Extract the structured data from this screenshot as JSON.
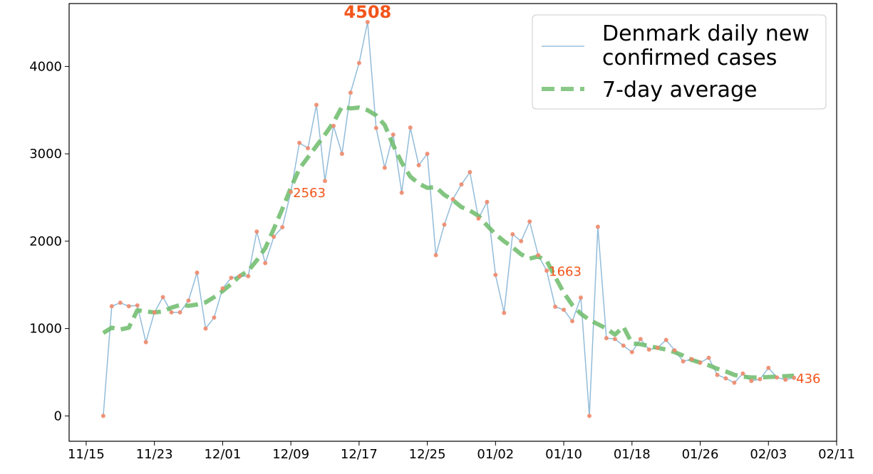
{
  "chart_data": {
    "type": "line",
    "title": "",
    "xlabel": "",
    "ylabel": "",
    "ylim": [
      -290,
      4720
    ],
    "xlim": [
      "2020-11-13",
      "2021-02-11"
    ],
    "grid": false,
    "legend_position": "top-right",
    "x_ticks": [
      {
        "date": "2020-11-15",
        "label": "11/15"
      },
      {
        "date": "2020-11-23",
        "label": "11/23"
      },
      {
        "date": "2020-12-01",
        "label": "12/01"
      },
      {
        "date": "2020-12-09",
        "label": "12/09"
      },
      {
        "date": "2020-12-17",
        "label": "12/17"
      },
      {
        "date": "2020-12-25",
        "label": "12/25"
      },
      {
        "date": "2021-01-02",
        "label": "01/02"
      },
      {
        "date": "2021-01-10",
        "label": "01/10"
      },
      {
        "date": "2021-01-18",
        "label": "01/18"
      },
      {
        "date": "2021-01-26",
        "label": "01/26"
      },
      {
        "date": "2021-02-03",
        "label": "02/03"
      },
      {
        "date": "2021-02-11",
        "label": "02/11"
      }
    ],
    "y_ticks": [
      {
        "value": 0,
        "label": "0"
      },
      {
        "value": 1000,
        "label": "1000"
      },
      {
        "value": 2000,
        "label": "2000"
      },
      {
        "value": 3000,
        "label": "3000"
      },
      {
        "value": 4000,
        "label": "4000"
      }
    ],
    "x": [
      "2020-11-17",
      "2020-11-18",
      "2020-11-19",
      "2020-11-20",
      "2020-11-21",
      "2020-11-22",
      "2020-11-23",
      "2020-11-24",
      "2020-11-25",
      "2020-11-26",
      "2020-11-27",
      "2020-11-28",
      "2020-11-29",
      "2020-11-30",
      "2020-12-01",
      "2020-12-02",
      "2020-12-03",
      "2020-12-04",
      "2020-12-05",
      "2020-12-06",
      "2020-12-07",
      "2020-12-08",
      "2020-12-09",
      "2020-12-10",
      "2020-12-11",
      "2020-12-12",
      "2020-12-13",
      "2020-12-14",
      "2020-12-15",
      "2020-12-16",
      "2020-12-17",
      "2020-12-18",
      "2020-12-19",
      "2020-12-20",
      "2020-12-21",
      "2020-12-22",
      "2020-12-23",
      "2020-12-24",
      "2020-12-25",
      "2020-12-26",
      "2020-12-27",
      "2020-12-28",
      "2020-12-29",
      "2020-12-30",
      "2020-12-31",
      "2021-01-01",
      "2021-01-02",
      "2021-01-03",
      "2021-01-04",
      "2021-01-05",
      "2021-01-06",
      "2021-01-07",
      "2021-01-08",
      "2021-01-09",
      "2021-01-10",
      "2021-01-11",
      "2021-01-12",
      "2021-01-13",
      "2021-01-14",
      "2021-01-15",
      "2021-01-16",
      "2021-01-17",
      "2021-01-18",
      "2021-01-19",
      "2021-01-20",
      "2021-01-21",
      "2021-01-22",
      "2021-01-23",
      "2021-01-24",
      "2021-01-25",
      "2021-01-26",
      "2021-01-27",
      "2021-01-28",
      "2021-01-29",
      "2021-01-30",
      "2021-01-31",
      "2021-02-01",
      "2021-02-02",
      "2021-02-03",
      "2021-02-04",
      "2021-02-05",
      "2021-02-06"
    ],
    "series": [
      {
        "name": "Denmark daily new confirmed cases",
        "color": "#7fb0d3",
        "marker_color": "#f08a6b",
        "values": [
          0,
          1255,
          1295,
          1255,
          1265,
          845,
          1185,
          1360,
          1185,
          1185,
          1320,
          1640,
          1000,
          1125,
          1460,
          1580,
          1600,
          1600,
          2110,
          1750,
          2050,
          2160,
          2563,
          3125,
          3065,
          3560,
          2690,
          3320,
          3000,
          3700,
          4040,
          4508,
          3295,
          2840,
          3220,
          2555,
          3300,
          2870,
          3000,
          1840,
          2190,
          2480,
          2650,
          2790,
          2260,
          2450,
          1615,
          1180,
          2080,
          2000,
          2225,
          1840,
          1663,
          1250,
          1215,
          1085,
          1355,
          0,
          2165,
          890,
          880,
          805,
          730,
          880,
          760,
          780,
          870,
          750,
          625,
          650,
          610,
          665,
          470,
          430,
          380,
          485,
          400,
          420,
          550,
          440,
          415,
          436
        ]
      },
      {
        "name": "7-day average",
        "color": "#6cbb6a",
        "values": [
          950,
          1010,
          990,
          1010,
          1210,
          1195,
          1185,
          1195,
          1240,
          1270,
          1260,
          1275,
          1300,
          1360,
          1430,
          1510,
          1600,
          1660,
          1780,
          1920,
          2140,
          2370,
          2610,
          2830,
          2960,
          3090,
          3220,
          3360,
          3540,
          3520,
          3530,
          3500,
          3440,
          3330,
          3100,
          2900,
          2740,
          2660,
          2610,
          2620,
          2530,
          2470,
          2390,
          2350,
          2290,
          2180,
          2080,
          2000,
          1930,
          1850,
          1800,
          1825,
          1775,
          1590,
          1410,
          1270,
          1170,
          1100,
          1050,
          1000,
          930,
          1020,
          830,
          820,
          800,
          780,
          760,
          730,
          690,
          640,
          610,
          580,
          540,
          510,
          470,
          450,
          440,
          440,
          445,
          450,
          455,
          460
        ]
      }
    ],
    "annotations": [
      {
        "date": "2020-12-09",
        "value": 2563,
        "text": "2563",
        "style": "normal"
      },
      {
        "date": "2020-12-18",
        "value": 4508,
        "text": "4508",
        "style": "peak"
      },
      {
        "date": "2021-01-08",
        "value": 1663,
        "text": "1663",
        "style": "normal"
      },
      {
        "date": "2021-02-06",
        "value": 436,
        "text": "436",
        "style": "normal"
      }
    ]
  }
}
